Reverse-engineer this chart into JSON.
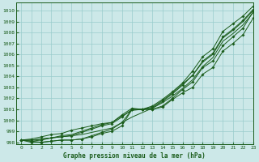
{
  "title": "Graphe pression niveau de la mer (hPa)",
  "bg_color": "#cce8e8",
  "grid_color": "#99cccc",
  "line_color": "#1a5c1a",
  "xlim": [
    -0.5,
    23
  ],
  "ylim": [
    997.8,
    1010.7
  ],
  "yticks": [
    998,
    999,
    1000,
    1001,
    1002,
    1003,
    1004,
    1005,
    1006,
    1007,
    1008,
    1009,
    1010
  ],
  "xticks": [
    0,
    1,
    2,
    3,
    4,
    5,
    6,
    7,
    8,
    9,
    10,
    11,
    12,
    13,
    14,
    15,
    16,
    17,
    18,
    19,
    20,
    21,
    22,
    23
  ],
  "series": [
    [
      998.2,
      998.1,
      998.0,
      998.1,
      998.2,
      998.2,
      998.3,
      998.5,
      998.8,
      999.0,
      999.5,
      1001.0,
      1001.0,
      1001.0,
      1001.2,
      1001.9,
      1002.5,
      1003.0,
      1004.2,
      1004.8,
      1006.3,
      1007.0,
      1007.8,
      1009.3
    ],
    [
      998.2,
      998.0,
      998.0,
      998.1,
      998.2,
      998.2,
      998.3,
      998.6,
      998.9,
      999.2,
      999.8,
      1001.0,
      1001.0,
      1001.0,
      1001.3,
      1002.0,
      1002.8,
      1003.5,
      1004.8,
      1005.4,
      1006.8,
      1007.6,
      1008.4,
      1009.9
    ],
    [
      998.2,
      998.1,
      998.2,
      998.4,
      998.5,
      998.6,
      998.9,
      999.2,
      999.5,
      999.7,
      1000.3,
      1001.0,
      1001.0,
      1001.1,
      1001.7,
      1002.4,
      1003.2,
      1004.1,
      1005.4,
      1006.1,
      1007.6,
      1008.3,
      1009.1,
      1010.1
    ],
    [
      998.2,
      998.3,
      998.5,
      998.7,
      998.8,
      999.1,
      999.3,
      999.5,
      999.7,
      999.8,
      1000.5,
      1001.1,
      1001.0,
      1001.3,
      1001.9,
      1002.6,
      1003.4,
      1004.5,
      1005.8,
      1006.5,
      1008.1,
      1008.8,
      1009.5,
      1010.4
    ]
  ],
  "no_marker_series": [
    [
      998.2,
      998.2,
      998.3,
      998.4,
      998.5,
      998.6,
      998.7,
      998.9,
      999.1,
      999.3,
      999.8,
      1000.3,
      1000.7,
      1001.1,
      1001.6,
      1002.2,
      1002.9,
      1003.7,
      1004.9,
      1005.7,
      1007.2,
      1007.9,
      1008.7,
      1009.8
    ],
    [
      998.2,
      998.2,
      998.3,
      998.4,
      998.6,
      998.7,
      999.0,
      999.3,
      999.6,
      999.8,
      1000.4,
      1000.9,
      1001.0,
      1001.2,
      1001.8,
      1002.5,
      1003.3,
      1004.1,
      1005.3,
      1006.0,
      1007.5,
      1008.2,
      1009.0,
      1010.0
    ]
  ]
}
